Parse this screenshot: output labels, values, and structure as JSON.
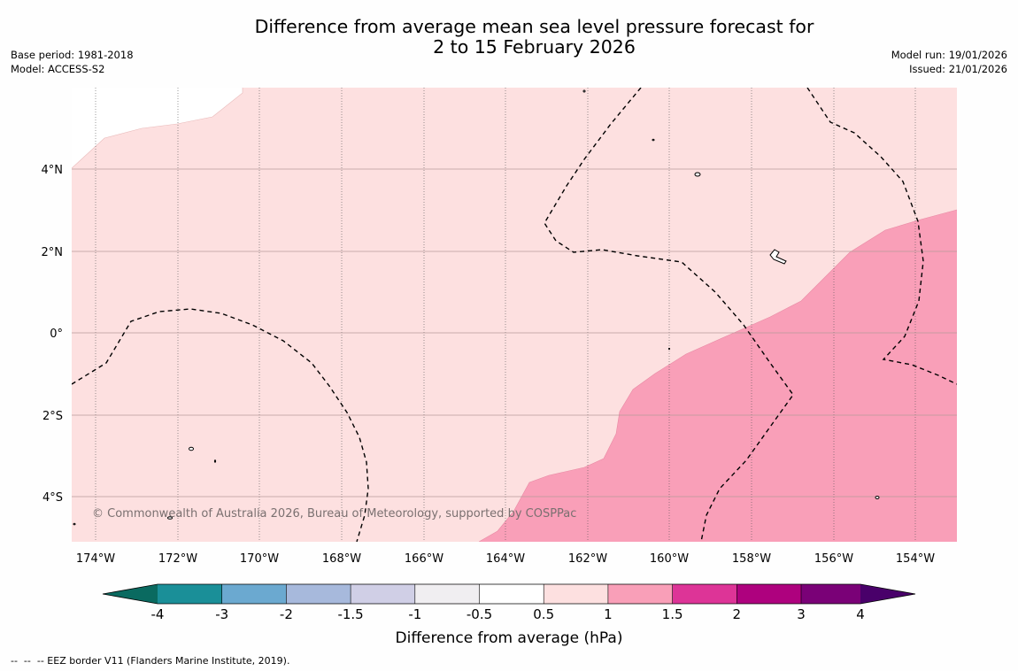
{
  "title_line1": "Difference from average mean sea level pressure forecast for",
  "title_line2": "2 to 15 February 2026",
  "base_period": "Base period: 1981-2018",
  "model": "Model: ACCESS-S2",
  "model_run": "Model run: 19/01/2026",
  "issued": "Issued: 21/01/2026",
  "copyright": "© Commonwealth of Australia 2026, Bureau of Meteorology, supported by COSPPac",
  "lon_ticks": [
    "174°W",
    "172°W",
    "170°W",
    "168°W",
    "166°W",
    "164°W",
    "162°W",
    "160°W",
    "158°W",
    "156°W",
    "154°W"
  ],
  "lat_ticks": [
    "4°N",
    "2°N",
    "0°",
    "2°S",
    "4°S"
  ],
  "colorbar": {
    "label": "Difference from average (hPa)",
    "ticks": [
      "-4",
      "-3",
      "-2",
      "-1.5",
      "-1",
      "-0.5",
      "0.5",
      "1",
      "1.5",
      "2",
      "3",
      "4"
    ],
    "colors": {
      "extend_low": "#0a6a60",
      "bins": [
        "#1a8f98",
        "#6ba9d0",
        "#a7b9dc",
        "#d0cfe6",
        "#f0eef1",
        "#ffffff",
        "#fde0e0",
        "#f99fb8",
        "#dd3497",
        "#ae017e",
        "#7a0177"
      ],
      "extend_high": "#49006a"
    }
  },
  "map_colors": {
    "weak_positive": "#fde0e0",
    "moderate_positive": "#f99fb8",
    "grid": "#b0a0a0",
    "eez": "#000000"
  },
  "eez_legend": "--  --  -- EEZ border V11 (Flanders Marine Institute, 2019)."
}
